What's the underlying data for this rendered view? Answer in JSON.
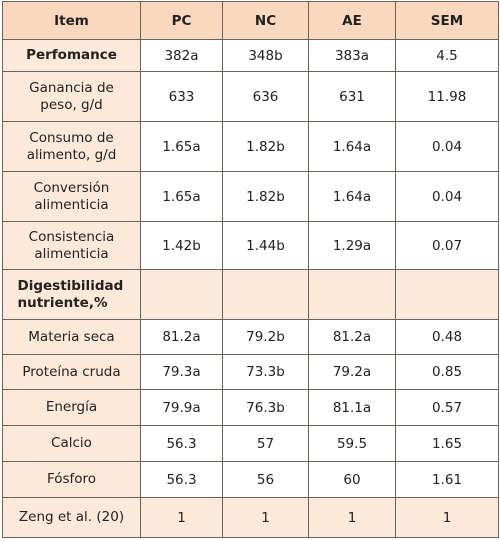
{
  "table": {
    "header": [
      "Item",
      "PC",
      "NC",
      "AE",
      "SEM"
    ],
    "rows": [
      [
        "Perfomance",
        "382a",
        "348b",
        "383a",
        "4.5"
      ],
      [
        "Ganancia de peso, g/d",
        "633",
        "636",
        "631",
        "11.98"
      ],
      [
        "Consumo de alimento, g/d",
        "1.65a",
        "1.82b",
        "1.64a",
        "0.04"
      ],
      [
        "Conversión alimenticia",
        "1.65a",
        "1.82b",
        "1.64a",
        "0.04"
      ],
      [
        "Consistencia alimenticia",
        "1.42b",
        "1.44b",
        "1.29a",
        "0.07"
      ],
      [
        "Digestibilidad nutriente,%"
      ],
      [
        "Materia seca",
        "81.2a",
        "79.2b",
        "81.2a",
        "0.48"
      ],
      [
        "Proteína cruda",
        "79.3a",
        "73.3b",
        "79.2a",
        "0.85"
      ],
      [
        "Energía",
        "79.9a",
        "76.3b",
        "81.1a",
        "0.57"
      ],
      [
        "Calcio",
        "56.3",
        "57",
        "59.5",
        "1.65"
      ],
      [
        "Fósforo",
        "56.3",
        "56",
        "60",
        "1.61"
      ],
      [
        "Zeng et al. (20)",
        "1",
        "1",
        "1",
        "1"
      ]
    ]
  }
}
